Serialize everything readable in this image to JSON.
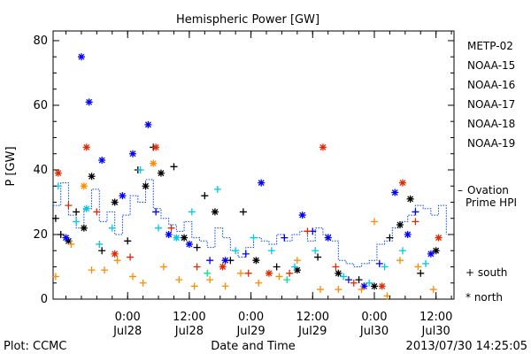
{
  "chart_data": {
    "type": "scatter",
    "title": "Hemispheric Power [GW]",
    "ylabel": "P [GW]",
    "xlabel": "Date and Time",
    "ylim": [
      0,
      83
    ],
    "xlim": [
      "2013-07-27 09:30",
      "2013-07-30 15:30"
    ],
    "x_ticks": [
      {
        "time": "2013-07-28 00:00",
        "top": "0:00",
        "bottom": "Jul28"
      },
      {
        "time": "2013-07-28 12:00",
        "top": "12:00",
        "bottom": "Jul28"
      },
      {
        "time": "2013-07-29 00:00",
        "top": "0:00",
        "bottom": "Jul29"
      },
      {
        "time": "2013-07-29 12:00",
        "top": "12:00",
        "bottom": "Jul29"
      },
      {
        "time": "2013-07-30 00:00",
        "top": "0:00",
        "bottom": "Jul30"
      },
      {
        "time": "2013-07-30 12:00",
        "top": "12:00",
        "bottom": "Jul30"
      }
    ],
    "y_ticks": [
      0,
      20,
      40,
      60,
      80
    ],
    "series": [
      {
        "name": "METP-02",
        "color": "#000000",
        "points": [
          {
            "x": "2013-07-27 10:00",
            "y": 25,
            "m": "+"
          },
          {
            "x": "2013-07-27 11:00",
            "y": 20,
            "m": "+"
          },
          {
            "x": "2013-07-27 12:30",
            "y": 18,
            "m": "*"
          },
          {
            "x": "2013-07-27 14:00",
            "y": 27,
            "m": "+"
          },
          {
            "x": "2013-07-27 15:30",
            "y": 22,
            "m": "*"
          },
          {
            "x": "2013-07-27 17:00",
            "y": 38,
            "m": "*"
          },
          {
            "x": "2013-07-27 19:00",
            "y": 15,
            "m": "+"
          },
          {
            "x": "2013-07-27 21:30",
            "y": 30,
            "m": "*"
          },
          {
            "x": "2013-07-28 00:00",
            "y": 18,
            "m": "+"
          },
          {
            "x": "2013-07-28 02:00",
            "y": 40,
            "m": "+"
          },
          {
            "x": "2013-07-28 03:30",
            "y": 35,
            "m": "*"
          },
          {
            "x": "2013-07-28 05:00",
            "y": 47,
            "m": "+"
          },
          {
            "x": "2013-07-28 06:30",
            "y": 39,
            "m": "*"
          },
          {
            "x": "2013-07-28 09:00",
            "y": 41,
            "m": "+"
          },
          {
            "x": "2013-07-28 11:00",
            "y": 19,
            "m": "*"
          },
          {
            "x": "2013-07-28 13:30",
            "y": 16,
            "m": "+"
          },
          {
            "x": "2013-07-28 15:00",
            "y": 32,
            "m": "+"
          },
          {
            "x": "2013-07-28 17:00",
            "y": 27,
            "m": "*"
          },
          {
            "x": "2013-07-28 20:00",
            "y": 12,
            "m": "+"
          },
          {
            "x": "2013-07-28 22:30",
            "y": 27,
            "m": "+"
          },
          {
            "x": "2013-07-29 01:00",
            "y": 12,
            "m": "*"
          },
          {
            "x": "2013-07-29 05:00",
            "y": 10,
            "m": "+"
          },
          {
            "x": "2013-07-29 09:00",
            "y": 9,
            "m": "*"
          },
          {
            "x": "2013-07-29 13:00",
            "y": 13,
            "m": "+"
          },
          {
            "x": "2013-07-29 17:00",
            "y": 8,
            "m": "*"
          },
          {
            "x": "2013-07-29 21:00",
            "y": 6,
            "m": "+"
          },
          {
            "x": "2013-07-30 00:00",
            "y": 4,
            "m": "*"
          },
          {
            "x": "2013-07-30 03:00",
            "y": 19,
            "m": "+"
          },
          {
            "x": "2013-07-30 05:00",
            "y": 23,
            "m": "*"
          },
          {
            "x": "2013-07-30 07:00",
            "y": 31,
            "m": "*"
          },
          {
            "x": "2013-07-30 09:00",
            "y": 8,
            "m": "+"
          },
          {
            "x": "2013-07-30 12:00",
            "y": 15,
            "m": "*"
          }
        ]
      },
      {
        "name": "NOAA-15",
        "color": "#0000ff",
        "points": [
          {
            "x": "2013-07-27 12:00",
            "y": 19,
            "m": "*"
          },
          {
            "x": "2013-07-27 15:00",
            "y": 75,
            "m": "*"
          },
          {
            "x": "2013-07-27 16:30",
            "y": 61,
            "m": "*"
          },
          {
            "x": "2013-07-27 19:00",
            "y": 43,
            "m": "*"
          },
          {
            "x": "2013-07-27 23:00",
            "y": 32,
            "m": "*"
          },
          {
            "x": "2013-07-28 01:00",
            "y": 45,
            "m": "*"
          },
          {
            "x": "2013-07-28 04:00",
            "y": 54,
            "m": "*"
          },
          {
            "x": "2013-07-28 05:30",
            "y": 27,
            "m": "+"
          },
          {
            "x": "2013-07-28 08:00",
            "y": 20,
            "m": "*"
          },
          {
            "x": "2013-07-28 12:00",
            "y": 17,
            "m": "*"
          },
          {
            "x": "2013-07-28 16:00",
            "y": 12,
            "m": "+"
          },
          {
            "x": "2013-07-28 19:00",
            "y": 12,
            "m": "*"
          },
          {
            "x": "2013-07-28 23:00",
            "y": 14,
            "m": "+"
          },
          {
            "x": "2013-07-29 02:00",
            "y": 36,
            "m": "*"
          },
          {
            "x": "2013-07-29 06:30",
            "y": 19,
            "m": "+"
          },
          {
            "x": "2013-07-29 10:00",
            "y": 26,
            "m": "*"
          },
          {
            "x": "2013-07-29 12:00",
            "y": 21,
            "m": "+"
          },
          {
            "x": "2013-07-29 15:00",
            "y": 19,
            "m": "*"
          },
          {
            "x": "2013-07-29 19:00",
            "y": 6,
            "m": "+"
          },
          {
            "x": "2013-07-29 22:00",
            "y": 4,
            "m": "*"
          },
          {
            "x": "2013-07-30 01:00",
            "y": 11,
            "m": "+"
          },
          {
            "x": "2013-07-30 04:00",
            "y": 33,
            "m": "*"
          },
          {
            "x": "2013-07-30 06:30",
            "y": 20,
            "m": "*"
          },
          {
            "x": "2013-07-30 08:00",
            "y": 27,
            "m": "+"
          },
          {
            "x": "2013-07-30 11:00",
            "y": 14,
            "m": "*"
          }
        ]
      },
      {
        "name": "NOAA-16",
        "color": "#00c8e6",
        "points": [
          {
            "x": "2013-07-27 10:30",
            "y": 35,
            "m": "+"
          },
          {
            "x": "2013-07-27 14:00",
            "y": 24,
            "m": "+"
          },
          {
            "x": "2013-07-27 16:00",
            "y": 28,
            "m": "*"
          },
          {
            "x": "2013-07-27 18:30",
            "y": 17,
            "m": "+"
          },
          {
            "x": "2013-07-27 21:00",
            "y": 22,
            "m": "+"
          },
          {
            "x": "2013-07-28 02:30",
            "y": 40,
            "m": "+"
          },
          {
            "x": "2013-07-28 06:00",
            "y": 22,
            "m": "+"
          },
          {
            "x": "2013-07-28 09:30",
            "y": 19,
            "m": "*"
          },
          {
            "x": "2013-07-28 12:30",
            "y": 27,
            "m": "+"
          },
          {
            "x": "2013-07-28 17:30",
            "y": 34,
            "m": "+"
          },
          {
            "x": "2013-07-28 21:00",
            "y": 15,
            "m": "+"
          },
          {
            "x": "2013-07-29 00:30",
            "y": 19,
            "m": "+"
          },
          {
            "x": "2013-07-29 04:00",
            "y": 15,
            "m": "+"
          },
          {
            "x": "2013-07-29 08:30",
            "y": 10,
            "m": "+"
          },
          {
            "x": "2013-07-29 12:30",
            "y": 15,
            "m": "+"
          },
          {
            "x": "2013-07-29 18:00",
            "y": 7,
            "m": "+"
          },
          {
            "x": "2013-07-29 23:00",
            "y": 5,
            "m": "+"
          },
          {
            "x": "2013-07-30 02:00",
            "y": 10,
            "m": "+"
          },
          {
            "x": "2013-07-30 05:30",
            "y": 15,
            "m": "+"
          },
          {
            "x": "2013-07-30 10:00",
            "y": 11,
            "m": "+"
          }
        ]
      },
      {
        "name": "NOAA-17",
        "color": "#00e68c",
        "points": [
          {
            "x": "2013-07-28 15:30",
            "y": 8,
            "m": "+"
          },
          {
            "x": "2013-07-29 07:00",
            "y": 6,
            "m": "+"
          }
        ]
      },
      {
        "name": "NOAA-18",
        "color": "#ff8c00",
        "points": [
          {
            "x": "2013-07-27 10:00",
            "y": 7,
            "m": "+"
          },
          {
            "x": "2013-07-27 13:00",
            "y": 17,
            "m": "+"
          },
          {
            "x": "2013-07-27 15:30",
            "y": 35,
            "m": "*"
          },
          {
            "x": "2013-07-27 17:00",
            "y": 9,
            "m": "+"
          },
          {
            "x": "2013-07-27 19:30",
            "y": 9,
            "m": "+"
          },
          {
            "x": "2013-07-27 22:00",
            "y": 12,
            "m": "+"
          },
          {
            "x": "2013-07-28 01:00",
            "y": 7,
            "m": "+"
          },
          {
            "x": "2013-07-28 03:00",
            "y": 5,
            "m": "+"
          },
          {
            "x": "2013-07-28 05:00",
            "y": 42,
            "m": "*"
          },
          {
            "x": "2013-07-28 07:00",
            "y": 10,
            "m": "+"
          },
          {
            "x": "2013-07-28 10:00",
            "y": 6,
            "m": "+"
          },
          {
            "x": "2013-07-28 13:00",
            "y": 4,
            "m": "+"
          },
          {
            "x": "2013-07-28 16:00",
            "y": 6,
            "m": "+"
          },
          {
            "x": "2013-07-28 19:00",
            "y": 4,
            "m": "+"
          },
          {
            "x": "2013-07-28 22:00",
            "y": 8,
            "m": "+"
          },
          {
            "x": "2013-07-29 01:30",
            "y": 5,
            "m": "+"
          },
          {
            "x": "2013-07-29 05:30",
            "y": 7,
            "m": "+"
          },
          {
            "x": "2013-07-29 09:00",
            "y": 12,
            "m": "+"
          },
          {
            "x": "2013-07-29 13:30",
            "y": 3,
            "m": "+"
          },
          {
            "x": "2013-07-29 17:00",
            "y": 3,
            "m": "+"
          },
          {
            "x": "2013-07-29 21:30",
            "y": 3,
            "m": "+"
          },
          {
            "x": "2013-07-30 00:00",
            "y": 24,
            "m": "+"
          },
          {
            "x": "2013-07-30 02:30",
            "y": 1,
            "m": "+"
          },
          {
            "x": "2013-07-30 05:00",
            "y": 12,
            "m": "+"
          },
          {
            "x": "2013-07-30 08:30",
            "y": 10,
            "m": "+"
          },
          {
            "x": "2013-07-30 11:30",
            "y": 3,
            "m": "+"
          }
        ]
      },
      {
        "name": "NOAA-19",
        "color": "#e62800",
        "points": [
          {
            "x": "2013-07-27 10:30",
            "y": 39,
            "m": "*"
          },
          {
            "x": "2013-07-27 12:30",
            "y": 29,
            "m": "+"
          },
          {
            "x": "2013-07-27 16:00",
            "y": 47,
            "m": "*"
          },
          {
            "x": "2013-07-27 18:00",
            "y": 27,
            "m": "+"
          },
          {
            "x": "2013-07-27 21:30",
            "y": 14,
            "m": "*"
          },
          {
            "x": "2013-07-28 00:30",
            "y": 13,
            "m": "+"
          },
          {
            "x": "2013-07-28 05:30",
            "y": 47,
            "m": "*"
          },
          {
            "x": "2013-07-28 08:30",
            "y": 22,
            "m": "+"
          },
          {
            "x": "2013-07-28 13:30",
            "y": 10,
            "m": "+"
          },
          {
            "x": "2013-07-28 18:30",
            "y": 10,
            "m": "*"
          },
          {
            "x": "2013-07-28 23:30",
            "y": 8,
            "m": "+"
          },
          {
            "x": "2013-07-29 03:30",
            "y": 8,
            "m": "*"
          },
          {
            "x": "2013-07-29 07:30",
            "y": 8,
            "m": "+"
          },
          {
            "x": "2013-07-29 11:00",
            "y": 21,
            "m": "+"
          },
          {
            "x": "2013-07-29 14:00",
            "y": 47,
            "m": "*"
          },
          {
            "x": "2013-07-29 16:30",
            "y": 10,
            "m": "+"
          },
          {
            "x": "2013-07-29 20:00",
            "y": 5,
            "m": "+"
          },
          {
            "x": "2013-07-30 01:30",
            "y": 4,
            "m": "*"
          },
          {
            "x": "2013-07-30 05:30",
            "y": 36,
            "m": "*"
          },
          {
            "x": "2013-07-30 08:00",
            "y": 24,
            "m": "+"
          },
          {
            "x": "2013-07-30 12:30",
            "y": 19,
            "m": "*"
          }
        ]
      }
    ],
    "ovation": {
      "name": "Ovation Prime HPI",
      "color": "#0040ff",
      "values": [
        [
          "2013-07-27 09:30",
          29
        ],
        [
          "2013-07-27 11:00",
          36
        ],
        [
          "2013-07-27 12:30",
          26
        ],
        [
          "2013-07-27 14:00",
          22
        ],
        [
          "2013-07-27 15:30",
          28
        ],
        [
          "2013-07-27 17:00",
          34
        ],
        [
          "2013-07-27 18:30",
          24
        ],
        [
          "2013-07-27 20:00",
          27
        ],
        [
          "2013-07-27 21:30",
          20
        ],
        [
          "2013-07-27 23:00",
          26
        ],
        [
          "2013-07-28 00:30",
          32
        ],
        [
          "2013-07-28 02:00",
          30
        ],
        [
          "2013-07-28 03:30",
          37
        ],
        [
          "2013-07-28 05:00",
          28
        ],
        [
          "2013-07-28 06:30",
          25
        ],
        [
          "2013-07-28 08:00",
          23
        ],
        [
          "2013-07-28 09:30",
          21
        ],
        [
          "2013-07-28 11:00",
          24
        ],
        [
          "2013-07-28 12:30",
          19
        ],
        [
          "2013-07-28 14:00",
          18
        ],
        [
          "2013-07-28 15:30",
          16
        ],
        [
          "2013-07-28 17:00",
          22
        ],
        [
          "2013-07-28 18:30",
          19
        ],
        [
          "2013-07-28 20:00",
          15
        ],
        [
          "2013-07-28 21:30",
          13
        ],
        [
          "2013-07-28 23:00",
          16
        ],
        [
          "2013-07-29 00:30",
          19
        ],
        [
          "2013-07-29 02:00",
          18
        ],
        [
          "2013-07-29 03:30",
          17
        ],
        [
          "2013-07-29 05:00",
          20
        ],
        [
          "2013-07-29 06:30",
          18
        ],
        [
          "2013-07-29 08:00",
          20
        ],
        [
          "2013-07-29 09:30",
          21
        ],
        [
          "2013-07-29 11:00",
          18
        ],
        [
          "2013-07-29 12:30",
          22
        ],
        [
          "2013-07-29 14:00",
          20
        ],
        [
          "2013-07-29 15:30",
          18
        ],
        [
          "2013-07-29 17:00",
          12
        ],
        [
          "2013-07-29 18:30",
          11
        ],
        [
          "2013-07-29 20:00",
          10
        ],
        [
          "2013-07-29 21:30",
          11
        ],
        [
          "2013-07-29 23:00",
          12
        ],
        [
          "2013-07-30 00:30",
          17
        ],
        [
          "2013-07-30 02:00",
          18
        ],
        [
          "2013-07-30 03:30",
          22
        ],
        [
          "2013-07-30 05:00",
          24
        ],
        [
          "2013-07-30 06:30",
          26
        ],
        [
          "2013-07-30 08:00",
          29
        ],
        [
          "2013-07-30 09:30",
          28
        ],
        [
          "2013-07-30 11:00",
          26
        ],
        [
          "2013-07-30 12:30",
          29
        ],
        [
          "2013-07-30 14:00",
          20
        ]
      ]
    },
    "legend_placement": "right",
    "marker_legend": [
      {
        "symbol": "+",
        "label": "south"
      },
      {
        "symbol": "*",
        "label": "north"
      }
    ],
    "ovation_label_lines": [
      "Ovation",
      "Prime HPI"
    ],
    "ovation_dash": "–"
  },
  "footer": {
    "plot_label": "Plot: CCMC",
    "timestamp": "2013/07/30 14:25:05"
  }
}
